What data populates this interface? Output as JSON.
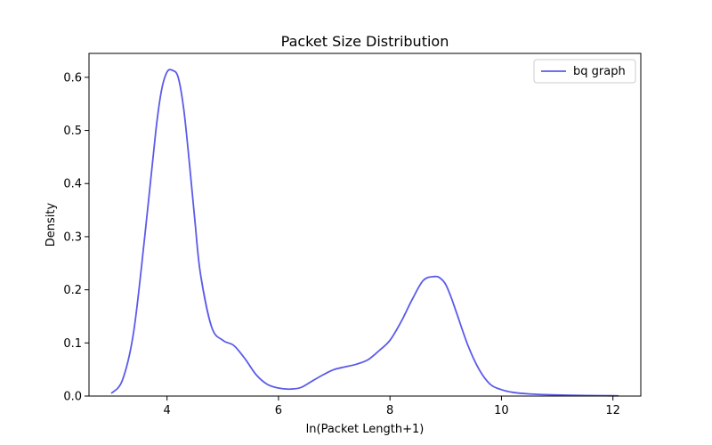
{
  "chart_data": {
    "type": "line",
    "title": "Packet Size Distribution",
    "xlabel": "ln(Packet Length+1)",
    "ylabel": "Density",
    "xlim": [
      2.6,
      12.5
    ],
    "ylim": [
      0,
      0.645
    ],
    "xticks": [
      4,
      6,
      8,
      10,
      12
    ],
    "xtick_labels": [
      "4",
      "6",
      "8",
      "10",
      "12"
    ],
    "yticks": [
      0.0,
      0.1,
      0.2,
      0.3,
      0.4,
      0.5,
      0.6
    ],
    "ytick_labels": [
      "0.0",
      "0.1",
      "0.2",
      "0.3",
      "0.4",
      "0.5",
      "0.6"
    ],
    "grid": false,
    "legend_position": "top-right",
    "series": [
      {
        "name": "bq graph",
        "color": "#5b5bea",
        "x": [
          3.0,
          3.2,
          3.4,
          3.6,
          3.8,
          3.9,
          4.0,
          4.1,
          4.2,
          4.3,
          4.4,
          4.5,
          4.6,
          4.8,
          5.0,
          5.2,
          5.4,
          5.6,
          5.8,
          6.0,
          6.2,
          6.4,
          6.6,
          6.8,
          7.0,
          7.2,
          7.4,
          7.6,
          7.8,
          8.0,
          8.2,
          8.4,
          8.6,
          8.8,
          8.9,
          9.0,
          9.1,
          9.2,
          9.4,
          9.6,
          9.8,
          10.0,
          10.2,
          10.5,
          11.0,
          11.5,
          12.0,
          12.1
        ],
        "y": [
          0.005,
          0.03,
          0.12,
          0.3,
          0.5,
          0.575,
          0.61,
          0.613,
          0.6,
          0.54,
          0.44,
          0.33,
          0.23,
          0.13,
          0.105,
          0.095,
          0.07,
          0.04,
          0.022,
          0.015,
          0.013,
          0.016,
          0.028,
          0.04,
          0.05,
          0.055,
          0.06,
          0.068,
          0.085,
          0.105,
          0.14,
          0.182,
          0.218,
          0.225,
          0.222,
          0.21,
          0.185,
          0.155,
          0.095,
          0.05,
          0.022,
          0.012,
          0.007,
          0.004,
          0.002,
          0.001,
          0.0005,
          0.0004
        ]
      }
    ]
  }
}
